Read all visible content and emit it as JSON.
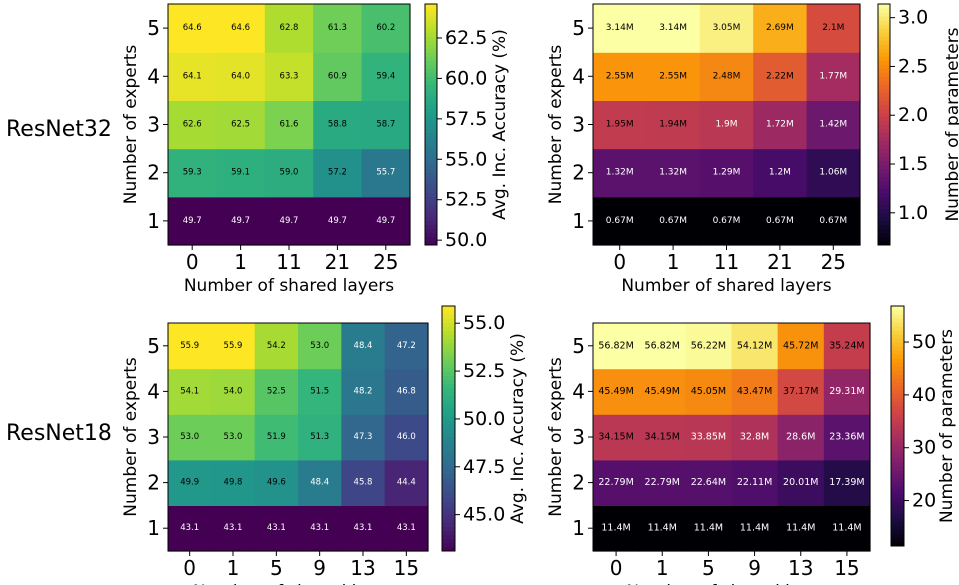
{
  "rows": [
    {
      "label": "ResNet32"
    },
    {
      "label": "ResNet18"
    }
  ],
  "chart_data": [
    {
      "type": "heatmap",
      "x_categories": [
        "0",
        "1",
        "11",
        "21",
        "25"
      ],
      "y_categories": [
        "1",
        "2",
        "3",
        "4",
        "5"
      ],
      "xlabel": "Number of shared layers",
      "ylabel": "Number of experts",
      "colormap": "viridis",
      "colorbar": {
        "label": "Avg. Inc. Accuracy (%)",
        "range": [
          49.7,
          64.6
        ],
        "ticks": [
          "50.0",
          "52.5",
          "55.0",
          "57.5",
          "60.0",
          "62.5"
        ]
      },
      "values": [
        [
          49.7,
          49.7,
          49.7,
          49.7,
          49.7
        ],
        [
          59.3,
          59.1,
          59.0,
          57.2,
          55.7
        ],
        [
          62.6,
          62.5,
          61.6,
          58.8,
          58.7
        ],
        [
          64.1,
          64.0,
          63.3,
          60.9,
          59.4
        ],
        [
          64.6,
          64.6,
          62.8,
          61.3,
          60.2
        ]
      ],
      "value_labels": [
        [
          "49.7",
          "49.7",
          "49.7",
          "49.7",
          "49.7"
        ],
        [
          "59.3",
          "59.1",
          "59.0",
          "57.2",
          "55.7"
        ],
        [
          "62.6",
          "62.5",
          "61.6",
          "58.8",
          "58.7"
        ],
        [
          "64.1",
          "64.0",
          "63.3",
          "60.9",
          "59.4"
        ],
        [
          "64.6",
          "64.6",
          "62.8",
          "61.3",
          "60.2"
        ]
      ]
    },
    {
      "type": "heatmap",
      "x_categories": [
        "0",
        "1",
        "11",
        "21",
        "25"
      ],
      "y_categories": [
        "1",
        "2",
        "3",
        "4",
        "5"
      ],
      "xlabel": "Number of shared layers",
      "ylabel": "Number of experts",
      "colormap": "inferno",
      "colorbar": {
        "label": "Number of parameters",
        "range": [
          0.67,
          3.14
        ],
        "ticks": [
          "1.0",
          "1.5",
          "2.0",
          "2.5",
          "3.0"
        ]
      },
      "values": [
        [
          0.67,
          0.67,
          0.67,
          0.67,
          0.67
        ],
        [
          1.32,
          1.32,
          1.29,
          1.2,
          1.06
        ],
        [
          1.95,
          1.94,
          1.9,
          1.72,
          1.42
        ],
        [
          2.55,
          2.55,
          2.48,
          2.22,
          1.77
        ],
        [
          3.14,
          3.14,
          3.05,
          2.69,
          2.1
        ]
      ],
      "value_labels": [
        [
          "0.67M",
          "0.67M",
          "0.67M",
          "0.67M",
          "0.67M"
        ],
        [
          "1.32M",
          "1.32M",
          "1.29M",
          "1.2M",
          "1.06M"
        ],
        [
          "1.95M",
          "1.94M",
          "1.9M",
          "1.72M",
          "1.42M"
        ],
        [
          "2.55M",
          "2.55M",
          "2.48M",
          "2.22M",
          "1.77M"
        ],
        [
          "3.14M",
          "3.14M",
          "3.05M",
          "2.69M",
          "2.1M"
        ]
      ]
    },
    {
      "type": "heatmap",
      "x_categories": [
        "0",
        "1",
        "5",
        "9",
        "13",
        "15"
      ],
      "y_categories": [
        "1",
        "2",
        "3",
        "4",
        "5"
      ],
      "xlabel": "Number of shared layers",
      "ylabel": "Number of experts",
      "colormap": "viridis",
      "colorbar": {
        "label": "Avg. Inc. Accuracy (%)",
        "range": [
          43.1,
          55.9
        ],
        "ticks": [
          "45.0",
          "47.5",
          "50.0",
          "52.5",
          "55.0"
        ]
      },
      "values": [
        [
          43.1,
          43.1,
          43.1,
          43.1,
          43.1,
          43.1
        ],
        [
          49.9,
          49.8,
          49.6,
          48.4,
          45.8,
          44.4
        ],
        [
          53.0,
          53.0,
          51.9,
          51.3,
          47.3,
          46.0
        ],
        [
          54.1,
          54.0,
          52.5,
          51.5,
          48.2,
          46.8
        ],
        [
          55.9,
          55.9,
          54.2,
          53.0,
          48.4,
          47.2
        ]
      ],
      "value_labels": [
        [
          "43.1",
          "43.1",
          "43.1",
          "43.1",
          "43.1",
          "43.1"
        ],
        [
          "49.9",
          "49.8",
          "49.6",
          "48.4",
          "45.8",
          "44.4"
        ],
        [
          "53.0",
          "53.0",
          "51.9",
          "51.3",
          "47.3",
          "46.0"
        ],
        [
          "54.1",
          "54.0",
          "52.5",
          "51.5",
          "48.2",
          "46.8"
        ],
        [
          "55.9",
          "55.9",
          "54.2",
          "53.0",
          "48.4",
          "47.2"
        ]
      ]
    },
    {
      "type": "heatmap",
      "x_categories": [
        "0",
        "1",
        "5",
        "9",
        "13",
        "15"
      ],
      "y_categories": [
        "1",
        "2",
        "3",
        "4",
        "5"
      ],
      "xlabel": "Number of shared layers",
      "ylabel": "Number of experts",
      "colormap": "inferno",
      "colorbar": {
        "label": "Number of parameters",
        "range": [
          11.4,
          56.82
        ],
        "ticks": [
          "20",
          "30",
          "40",
          "50"
        ]
      },
      "values": [
        [
          11.4,
          11.4,
          11.4,
          11.4,
          11.4,
          11.4
        ],
        [
          22.79,
          22.79,
          22.64,
          22.11,
          20.01,
          17.39
        ],
        [
          34.15,
          34.15,
          33.85,
          32.8,
          28.6,
          23.36
        ],
        [
          45.49,
          45.49,
          45.05,
          43.47,
          37.17,
          29.31
        ],
        [
          56.82,
          56.82,
          56.22,
          54.12,
          45.72,
          35.24
        ]
      ],
      "value_labels": [
        [
          "11.4M",
          "11.4M",
          "11.4M",
          "11.4M",
          "11.4M",
          "11.4M"
        ],
        [
          "22.79M",
          "22.79M",
          "22.64M",
          "22.11M",
          "20.01M",
          "17.39M"
        ],
        [
          "34.15M",
          "34.15M",
          "33.85M",
          "32.8M",
          "28.6M",
          "23.36M"
        ],
        [
          "45.49M",
          "45.49M",
          "45.05M",
          "43.47M",
          "37.17M",
          "29.31M"
        ],
        [
          "56.82M",
          "56.82M",
          "56.22M",
          "54.12M",
          "45.72M",
          "35.24M"
        ]
      ]
    }
  ]
}
